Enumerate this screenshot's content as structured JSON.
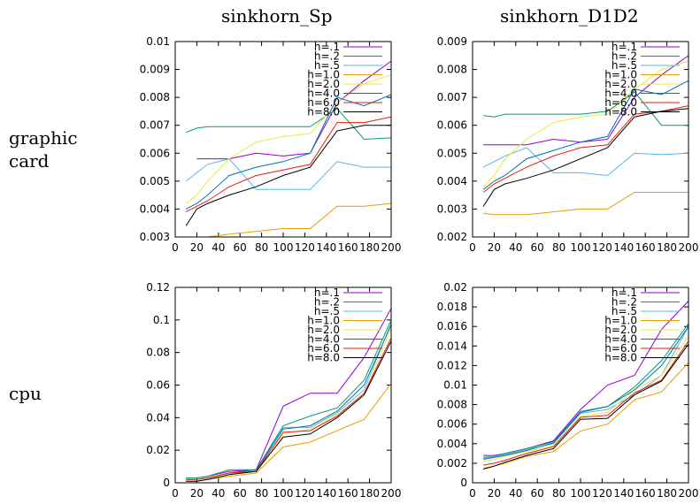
{
  "column_titles": [
    "sinkhorn_Sp",
    "sinkhorn_D1D2"
  ],
  "row_labels": [
    [
      "graphic",
      "card"
    ],
    [
      "cpu"
    ]
  ],
  "colors": [
    "#9400d3",
    "#009e73",
    "#56b4e9",
    "#e69f00",
    "#f0e442",
    "#0072b2",
    "#e51e10",
    "#000000"
  ],
  "chart_data": [
    {
      "type": "line",
      "title": "",
      "xlabel": "",
      "ylabel": "",
      "xlim": [
        0,
        200
      ],
      "ylim": [
        0.003,
        0.01
      ],
      "xticks": [
        "0",
        "20",
        "40",
        "60",
        "80",
        "100",
        "120",
        "140",
        "160",
        "180",
        "200"
      ],
      "yticks": [
        "0.003",
        "0.004",
        "0.005",
        "0.006",
        "0.007",
        "0.008",
        "0.009",
        "0.01"
      ],
      "x": [
        10,
        20,
        30,
        50,
        75,
        100,
        125,
        150,
        175,
        200
      ],
      "grid": true,
      "legend": "top-right",
      "series": [
        {
          "name": "h=.1",
          "values": [
            null,
            0.0058,
            0.0058,
            0.0058,
            0.006,
            0.0059,
            0.006,
            0.0078,
            0.0086,
            0.0093
          ]
        },
        {
          "name": "h=.2",
          "values": [
            0.00675,
            0.0069,
            0.00695,
            0.00695,
            0.00695,
            0.00695,
            0.00695,
            0.0076,
            0.0065,
            0.00655
          ]
        },
        {
          "name": "h=.5",
          "values": [
            0.005,
            0.0053,
            0.0056,
            0.0058,
            0.0047,
            0.0047,
            0.0047,
            0.0057,
            0.0055,
            0.0055
          ]
        },
        {
          "name": "h=1.0",
          "values": [
            0.003,
            0.003,
            0.003,
            0.0031,
            0.0032,
            0.0033,
            0.0033,
            0.0041,
            0.0041,
            0.0042
          ]
        },
        {
          "name": "h=2.0",
          "values": [
            0.0042,
            0.0045,
            0.005,
            0.0058,
            0.0064,
            0.0066,
            0.0067,
            0.0078,
            0.0085,
            0.0088
          ]
        },
        {
          "name": "h=4.0",
          "values": [
            0.004,
            0.0042,
            0.0045,
            0.0052,
            0.0055,
            0.0057,
            0.006,
            0.008,
            0.0077,
            0.0081
          ]
        },
        {
          "name": "h=6.0",
          "values": [
            0.0039,
            0.0041,
            0.0043,
            0.0048,
            0.0052,
            0.0054,
            0.0056,
            0.0071,
            0.0071,
            0.0073
          ]
        },
        {
          "name": "h=8.0",
          "values": [
            0.0034,
            0.004,
            0.0042,
            0.0045,
            0.0048,
            0.0052,
            0.0055,
            0.0068,
            0.007,
            0.007
          ]
        }
      ]
    },
    {
      "type": "line",
      "title": "",
      "xlabel": "",
      "ylabel": "",
      "xlim": [
        0,
        200
      ],
      "ylim": [
        0.002,
        0.009
      ],
      "xticks": [
        "0",
        "20",
        "40",
        "60",
        "80",
        "100",
        "120",
        "140",
        "160",
        "180",
        "200"
      ],
      "yticks": [
        "0.002",
        "0.003",
        "0.004",
        "0.005",
        "0.006",
        "0.007",
        "0.008",
        "0.009"
      ],
      "x": [
        10,
        20,
        30,
        50,
        75,
        100,
        125,
        150,
        175,
        200
      ],
      "grid": true,
      "legend": "top-right",
      "series": [
        {
          "name": "h=.1",
          "values": [
            0.0053,
            0.0053,
            0.0053,
            0.0053,
            0.0055,
            0.0054,
            0.0055,
            0.007,
            0.0078,
            0.0085
          ]
        },
        {
          "name": "h=.2",
          "values": [
            0.00635,
            0.0063,
            0.0064,
            0.0064,
            0.0064,
            0.0064,
            0.0065,
            0.0072,
            0.006,
            0.006
          ]
        },
        {
          "name": "h=.5",
          "values": [
            0.0045,
            0.0047,
            0.0049,
            0.0052,
            0.0043,
            0.0043,
            0.0042,
            0.005,
            0.00495,
            0.005
          ]
        },
        {
          "name": "h=1.0",
          "values": [
            0.00285,
            0.0028,
            0.0028,
            0.0028,
            0.0029,
            0.003,
            0.003,
            0.0036,
            0.0036,
            0.0036
          ]
        },
        {
          "name": "h=2.0",
          "values": [
            0.0038,
            0.0042,
            0.0048,
            0.0055,
            0.0061,
            0.0063,
            0.0064,
            0.0073,
            0.008,
            0.0083
          ]
        },
        {
          "name": "h=4.0",
          "values": [
            0.0037,
            0.004,
            0.0042,
            0.0048,
            0.0051,
            0.0054,
            0.0056,
            0.0073,
            0.0071,
            0.0076
          ]
        },
        {
          "name": "h=6.0",
          "values": [
            0.0036,
            0.0039,
            0.0041,
            0.0045,
            0.0049,
            0.0052,
            0.0053,
            0.0064,
            0.0065,
            0.0067
          ]
        },
        {
          "name": "h=8.0",
          "values": [
            0.0031,
            0.0037,
            0.0039,
            0.0041,
            0.0044,
            0.0048,
            0.0052,
            0.0063,
            0.0065,
            0.0066
          ]
        }
      ]
    },
    {
      "type": "line",
      "title": "",
      "xlabel": "",
      "ylabel": "",
      "xlim": [
        0,
        200
      ],
      "ylim": [
        0,
        0.12
      ],
      "xticks": [
        "0",
        "20",
        "40",
        "60",
        "80",
        "100",
        "120",
        "140",
        "160",
        "180",
        "200"
      ],
      "yticks": [
        "0",
        "0.02",
        "0.04",
        "0.06",
        "0.08",
        "0.1",
        "0.12"
      ],
      "x": [
        10,
        20,
        30,
        50,
        75,
        100,
        125,
        150,
        175,
        200
      ],
      "grid": true,
      "legend": "top-right",
      "series": [
        {
          "name": "h=.1",
          "values": [
            0.003,
            0.003,
            0.004,
            0.007,
            0.008,
            0.047,
            0.055,
            0.055,
            0.077,
            0.107
          ]
        },
        {
          "name": "h=.2",
          "values": [
            0.003,
            0.003,
            0.004,
            0.008,
            0.008,
            0.035,
            0.041,
            0.046,
            0.063,
            0.1
          ]
        },
        {
          "name": "h=.5",
          "values": [
            0.002,
            0.002,
            0.003,
            0.006,
            0.007,
            0.034,
            0.034,
            0.043,
            0.057,
            0.098
          ]
        },
        {
          "name": "h=1.0",
          "values": [
            0.001,
            0.001,
            0.002,
            0.004,
            0.006,
            0.022,
            0.025,
            0.032,
            0.039,
            0.061
          ]
        },
        {
          "name": "h=2.0",
          "values": [
            0.002,
            0.002,
            0.003,
            0.006,
            0.008,
            0.03,
            0.033,
            0.042,
            0.054,
            0.095
          ]
        },
        {
          "name": "h=4.0",
          "values": [
            0.002,
            0.002,
            0.003,
            0.006,
            0.008,
            0.033,
            0.035,
            0.044,
            0.06,
            0.097
          ]
        },
        {
          "name": "h=6.0",
          "values": [
            0.002,
            0.002,
            0.003,
            0.006,
            0.007,
            0.031,
            0.032,
            0.041,
            0.055,
            0.089
          ]
        },
        {
          "name": "h=8.0",
          "values": [
            0.001,
            0.001,
            0.002,
            0.005,
            0.007,
            0.028,
            0.03,
            0.04,
            0.054,
            0.087
          ]
        }
      ]
    },
    {
      "type": "line",
      "title": "",
      "xlabel": "",
      "ylabel": "",
      "xlim": [
        0,
        200
      ],
      "ylim": [
        0,
        0.02
      ],
      "xticks": [
        "0",
        "20",
        "40",
        "60",
        "80",
        "100",
        "120",
        "140",
        "160",
        "180",
        "200"
      ],
      "yticks": [
        "0",
        "0.002",
        "0.004",
        "0.006",
        "0.008",
        "0.01",
        "0.012",
        "0.014",
        "0.016",
        "0.018",
        "0.02"
      ],
      "x": [
        10,
        20,
        30,
        50,
        75,
        100,
        125,
        150,
        175,
        200
      ],
      "grid": true,
      "legend": "top-right",
      "series": [
        {
          "name": "h=.1",
          "values": [
            0.0028,
            0.0028,
            0.003,
            0.0035,
            0.0043,
            0.0075,
            0.01,
            0.011,
            0.0157,
            0.0186
          ]
        },
        {
          "name": "h=.2",
          "values": [
            0.0026,
            0.0027,
            0.003,
            0.0035,
            0.0042,
            0.0073,
            0.0078,
            0.0098,
            0.0125,
            0.0163
          ]
        },
        {
          "name": "h=.5",
          "values": [
            0.0025,
            0.0027,
            0.0029,
            0.0034,
            0.004,
            0.0071,
            0.0075,
            0.009,
            0.011,
            0.016
          ]
        },
        {
          "name": "h=1.0",
          "values": [
            0.0015,
            0.0017,
            0.002,
            0.0027,
            0.0032,
            0.0053,
            0.006,
            0.0085,
            0.0093,
            0.0123
          ]
        },
        {
          "name": "h=2.0",
          "values": [
            0.0022,
            0.0024,
            0.0027,
            0.0032,
            0.0038,
            0.0068,
            0.0072,
            0.0095,
            0.011,
            0.015
          ]
        },
        {
          "name": "h=4.0",
          "values": [
            0.0024,
            0.0026,
            0.0028,
            0.0033,
            0.0041,
            0.0072,
            0.0078,
            0.0095,
            0.012,
            0.016
          ]
        },
        {
          "name": "h=6.0",
          "values": [
            0.0018,
            0.002,
            0.0023,
            0.003,
            0.0037,
            0.0067,
            0.0069,
            0.0092,
            0.0105,
            0.0145
          ]
        },
        {
          "name": "h=8.0",
          "values": [
            0.0014,
            0.0017,
            0.0021,
            0.0028,
            0.0035,
            0.0065,
            0.0066,
            0.009,
            0.0104,
            0.0142
          ]
        }
      ]
    }
  ]
}
